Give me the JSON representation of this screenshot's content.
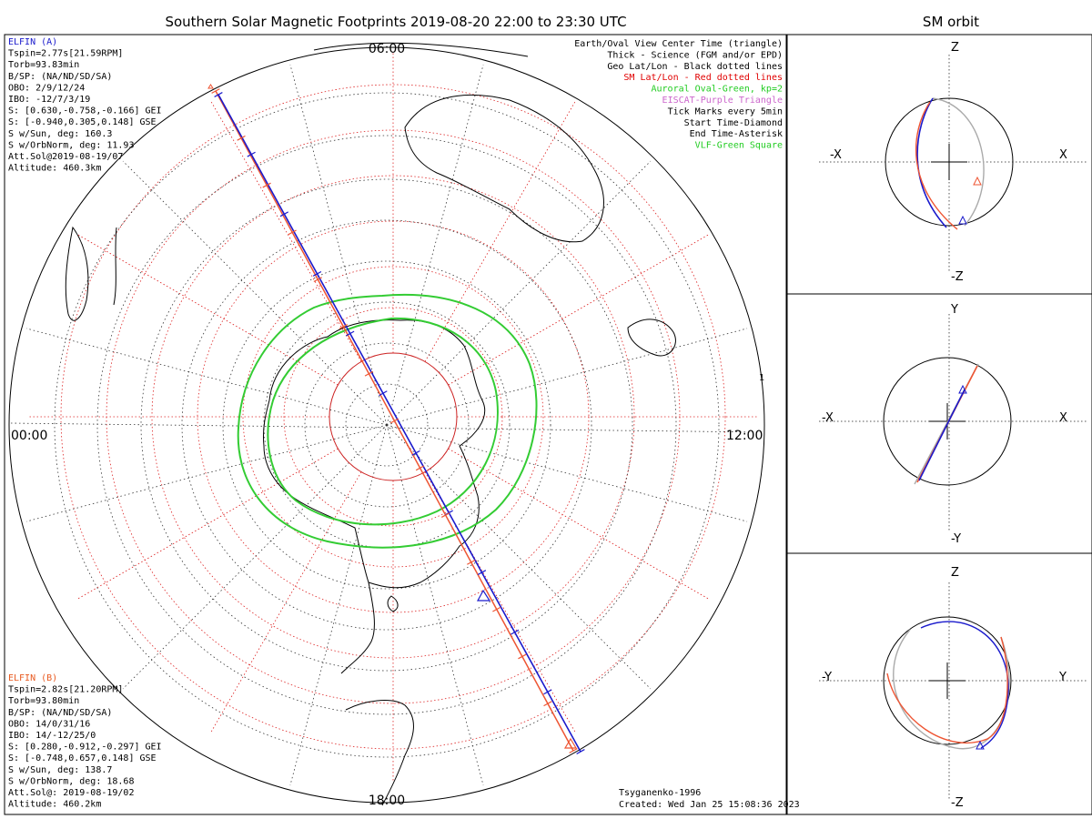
{
  "title": "Southern Solar Magnetic Footprints 2019-08-20 22:00 to 23:30 UTC",
  "orbit_title": "SM orbit",
  "map_labels": {
    "top": "06:00",
    "bottom": "18:00",
    "left": "00:00",
    "right": "12:00",
    "marker": "1"
  },
  "legend": [
    {
      "text": "Earth/Oval View Center Time (triangle)",
      "color": "#000000"
    },
    {
      "text": "Thick - Science (FGM and/or EPD)",
      "color": "#000000"
    },
    {
      "text": "Geo Lat/Lon - Black dotted lines",
      "color": "#000000"
    },
    {
      "text": "SM Lat/Lon - Red dotted lines",
      "color": "#e00000"
    },
    {
      "text": "Auroral Oval-Green, kp=2",
      "color": "#22cc22"
    },
    {
      "text": "EISCAT-Purple Triangle",
      "color": "#cc66cc"
    },
    {
      "text": "Tick Marks every 5min",
      "color": "#000000"
    },
    {
      "text": "Start Time-Diamond",
      "color": "#000000"
    },
    {
      "text": "End Time-Asterisk",
      "color": "#000000"
    },
    {
      "text": "VLF-Green Square",
      "color": "#22cc22"
    }
  ],
  "elfin_a": {
    "name": "ELFIN (A)",
    "color": "#1a1acc",
    "lines": [
      "Tspin=2.77s[21.59RPM]",
      "Torb=93.83min",
      "B/SP: (NA/ND/SD/SA)",
      "OBO: 2/9/12/24",
      "IBO: -12/7/3/19",
      "S: [0.630,-0.758,-0.166] GEI",
      "S: [-0.940,0.305,0.148] GSE",
      "S w/Sun, deg: 160.3",
      "S w/OrbNorm, deg: 11.93",
      "Att.Sol@2019-08-19/07",
      "Altitude: 460.3km"
    ]
  },
  "elfin_b": {
    "name": "ELFIN (B)",
    "color": "#e85a20",
    "lines": [
      "Tspin=2.82s[21.20RPM]",
      "Torb=93.80min",
      "B/SP: (NA/ND/SD/SA)",
      "OBO: 14/0/31/16",
      "IBO: 14/-12/25/0",
      "S: [0.280,-0.912,-0.297] GEI",
      "S: [-0.748,0.657,0.148] GSE",
      "S w/Sun, deg: 138.7",
      "S w/OrbNorm, deg: 18.68",
      "Att.Sol@: 2019-08-19/02",
      "Altitude: 460.2km"
    ]
  },
  "footer": [
    "Tsyganenko-1996",
    "Created: Wed Jan 25 15:08:36 2023"
  ],
  "panels": [
    {
      "left": "-X",
      "right": "X",
      "top": "Z",
      "bottom": "-Z"
    },
    {
      "left": "-X",
      "right": "X",
      "top": "Y",
      "bottom": "-Y"
    },
    {
      "left": "-Y",
      "right": "Y",
      "top": "Z",
      "bottom": "-Z"
    }
  ],
  "colors": {
    "geo_grid": "#333333",
    "sm_grid": "#dd2222",
    "oval": "#33cc33",
    "track_a": "#1a1acc",
    "track_b": "#ee5533",
    "orbit_gray": "#aaaaaa"
  }
}
